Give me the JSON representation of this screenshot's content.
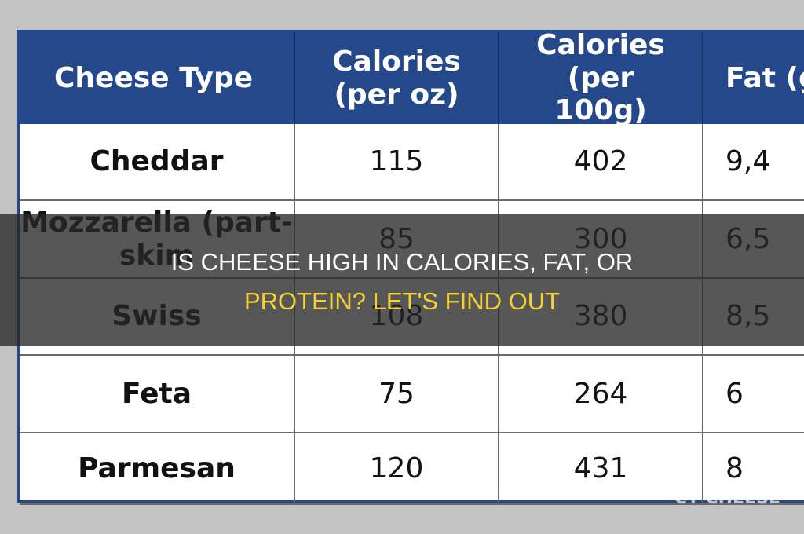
{
  "table": {
    "headers": [
      "Cheese Type",
      "Calories (per oz)",
      "Calories (per 100g)",
      "Fat (g)"
    ],
    "rows": [
      [
        "Cheddar",
        "115",
        "402",
        "9,4"
      ],
      [
        "Mozzarella (part-skim",
        "85",
        "300",
        "6,5"
      ],
      [
        "Swiss",
        "108",
        "380",
        "8,5"
      ],
      [
        "Feta",
        "75",
        "264",
        "6"
      ],
      [
        "Parmesan",
        "120",
        "431",
        "8"
      ]
    ]
  },
  "banner": {
    "line1": "IS CHEESE HIGH IN CALORIES, FAT, OR",
    "line2": "PROTEIN? LET'S FIND OUT"
  },
  "watermark": "CY CHEESE"
}
